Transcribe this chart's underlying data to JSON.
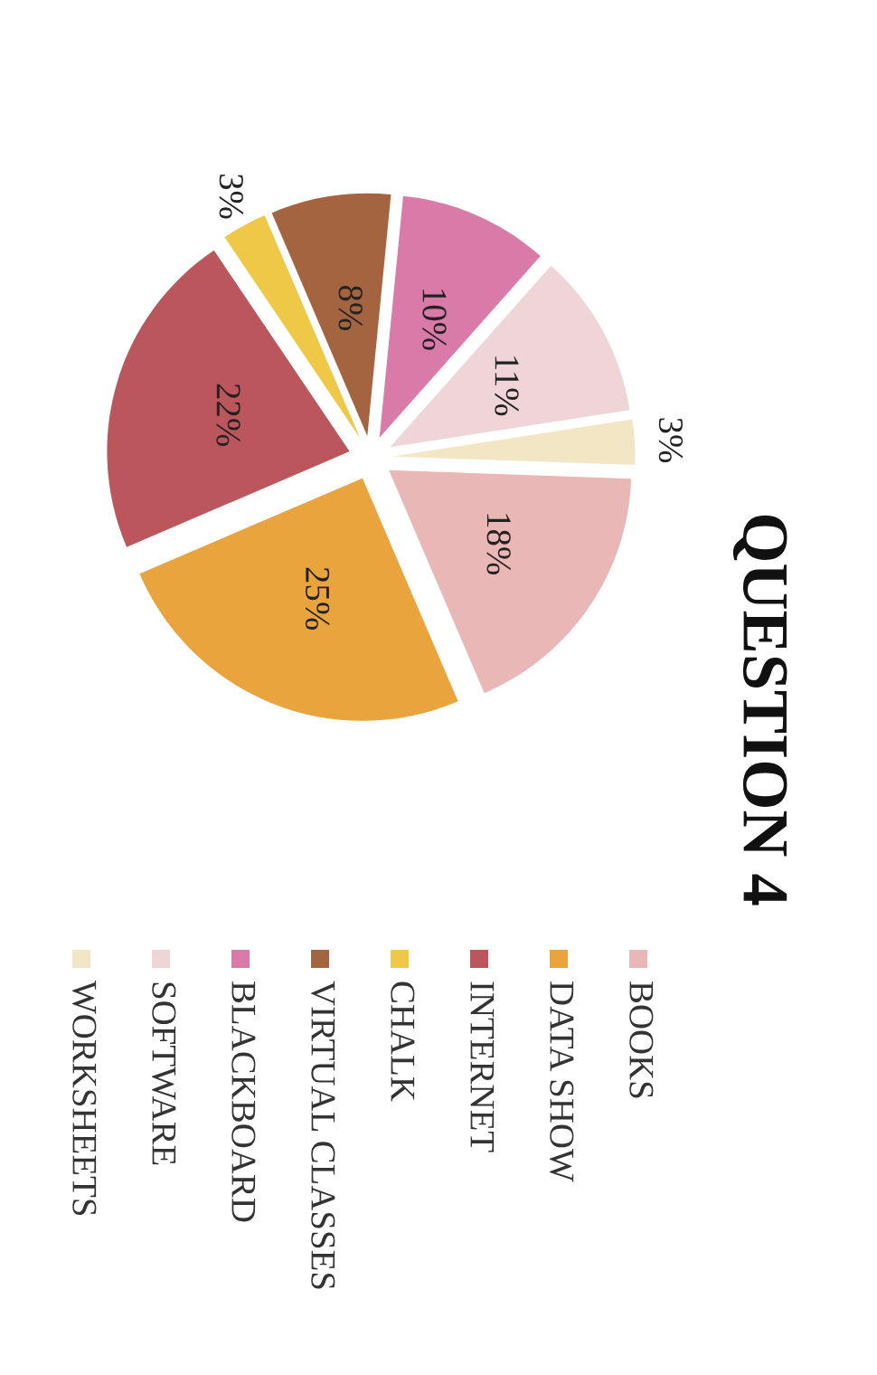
{
  "chart_data": {
    "type": "pie",
    "title": "QUESTION 4",
    "categories": [
      "BOOKS",
      "DATA SHOW",
      "INTERNET",
      "CHALK",
      "VIRTUAL CLASSES",
      "BLACKBOARD",
      "SOFTWARE",
      "WORKSHEETS"
    ],
    "values": [
      18,
      25,
      22,
      3,
      8,
      10,
      11,
      3
    ],
    "value_labels": [
      "18%",
      "25%",
      "22%",
      "3%",
      "8%",
      "10%",
      "11%",
      "3%"
    ],
    "colors": [
      "#e9b7b5",
      "#e9a43e",
      "#bb575c",
      "#efc848",
      "#a4643f",
      "#d97aa8",
      "#efd5d7",
      "#f2e6c4"
    ],
    "legend": "right"
  }
}
